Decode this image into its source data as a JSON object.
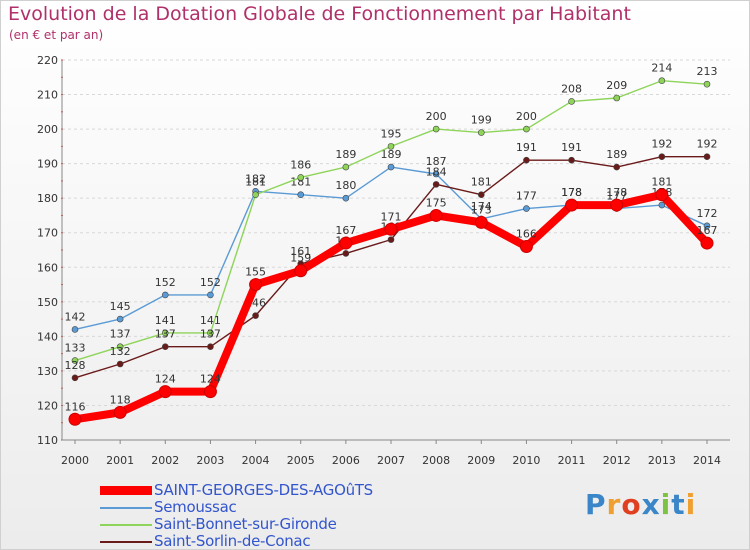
{
  "header": {
    "title": "Evolution de la Dotation Globale de Fonctionnement par Habitant",
    "subtitle": "(en € et par an)"
  },
  "logo": {
    "text": "Proxiti",
    "colors": [
      "#3a86c8",
      "#f0a030",
      "#e04020",
      "#3a86c8",
      "#7dc242",
      "#3a86c8",
      "#f0a030"
    ]
  },
  "chart_data": {
    "type": "line",
    "x": [
      2000,
      2001,
      2002,
      2003,
      2004,
      2005,
      2006,
      2007,
      2008,
      2009,
      2010,
      2011,
      2012,
      2013,
      2014
    ],
    "ylim": [
      110,
      220
    ],
    "yticks": [
      110,
      120,
      130,
      140,
      150,
      160,
      170,
      180,
      190,
      200,
      210,
      220
    ],
    "grid": "horizontal dashed",
    "legend_position": "bottom",
    "series": [
      {
        "name": "Semoussac",
        "color": "#5b9bd5",
        "values": [
          142,
          145,
          152,
          152,
          182,
          181,
          180,
          189,
          187,
          174,
          177,
          178,
          177,
          178,
          172
        ]
      },
      {
        "name": "Saint-Bonnet-sur-Gironde",
        "color": "#8fd45a",
        "values": [
          133,
          137,
          141,
          141,
          181,
          186,
          189,
          195,
          200,
          199,
          200,
          208,
          209,
          214,
          213
        ]
      },
      {
        "name": "Saint-Sorlin-de-Conac",
        "color": "#6b1a1a",
        "values": [
          128,
          132,
          137,
          137,
          146,
          161,
          164,
          168,
          184,
          181,
          191,
          191,
          189,
          192,
          192
        ]
      },
      {
        "name": "SAINT-GEORGES-DES-AGOûTS",
        "color": "#ff0000",
        "values": [
          116,
          118,
          124,
          124,
          155,
          159,
          167,
          171,
          175,
          173,
          166,
          178,
          178,
          181,
          167
        ]
      }
    ]
  }
}
